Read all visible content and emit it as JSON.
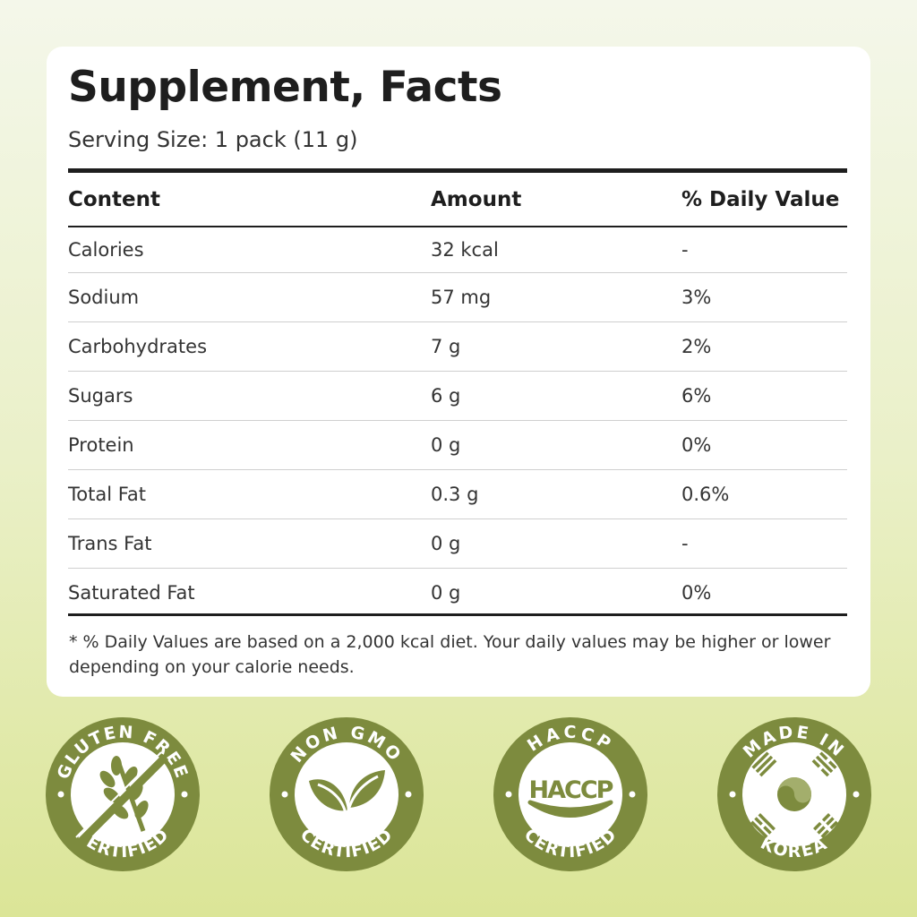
{
  "title": "Supplement, Facts",
  "serving_size": "Serving Size: 1 pack (11 g)",
  "table": {
    "headers": [
      "Content",
      "Amount",
      "% Daily Value"
    ],
    "rows": [
      [
        "Calories",
        "32 kcal",
        "-"
      ],
      [
        "Sodium",
        "57 mg",
        "3%"
      ],
      [
        "Carbohydrates",
        "7 g",
        "2%"
      ],
      [
        "Sugars",
        "6 g",
        "6%"
      ],
      [
        "Protein",
        "0 g",
        "0%"
      ],
      [
        "Total Fat",
        "0.3 g",
        "0.6%"
      ],
      [
        "Trans Fat",
        "0 g",
        "-"
      ],
      [
        "Saturated Fat",
        "0 g",
        "0%"
      ]
    ]
  },
  "footnote": "* % Daily Values are based on a 2,000 kcal diet. Your daily values may be higher or lower depending on your calorie needs.",
  "badges": [
    {
      "top": "GLUTEN FREE",
      "bottom": "CERTIFIED",
      "icon": "crossed-wheat-icon"
    },
    {
      "top": "NON GMO",
      "bottom": "CERTIFIED",
      "icon": "leaves-icon"
    },
    {
      "top": "HACCP",
      "bottom": "CERTIFIED",
      "icon": "haccp-logo",
      "center": "HACCP"
    },
    {
      "top": "MADE IN",
      "bottom": "KOREA",
      "icon": "korean-flag-icon"
    }
  ],
  "colors": {
    "badge_green": "#7d8b3e",
    "background_bottom": "#dbe597"
  }
}
